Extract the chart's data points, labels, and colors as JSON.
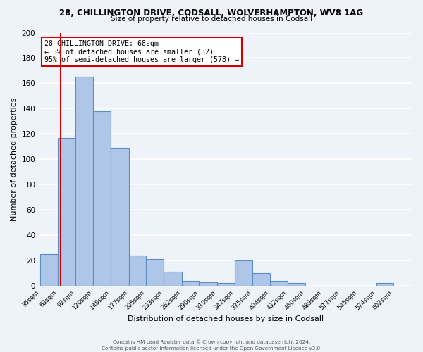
{
  "title_line1": "28, CHILLINGTON DRIVE, CODSALL, WOLVERHAMPTON, WV8 1AG",
  "title_line2": "Size of property relative to detached houses in Codsall",
  "xlabel": "Distribution of detached houses by size in Codsall",
  "ylabel": "Number of detached properties",
  "bar_edges": [
    35,
    63,
    92,
    120,
    148,
    177,
    205,
    233,
    262,
    290,
    319,
    347,
    375,
    404,
    432,
    460,
    489,
    517,
    545,
    574,
    602
  ],
  "bar_heights": [
    25,
    117,
    165,
    138,
    109,
    24,
    21,
    11,
    4,
    3,
    2,
    20,
    10,
    4,
    2,
    0,
    0,
    0,
    0,
    2,
    0
  ],
  "bar_color": "#aec6e8",
  "bar_edge_color": "#5b8ec4",
  "vline_x": 68,
  "vline_color": "#cc0000",
  "ylim": [
    0,
    200
  ],
  "yticks": [
    0,
    20,
    40,
    60,
    80,
    100,
    120,
    140,
    160,
    180,
    200
  ],
  "annotation_text": "28 CHILLINGTON DRIVE: 68sqm\n← 5% of detached houses are smaller (32)\n95% of semi-detached houses are larger (578) →",
  "annotation_box_color": "#ffffff",
  "annotation_box_edge": "#cc0000",
  "footer_line1": "Contains HM Land Registry data © Crown copyright and database right 2024.",
  "footer_line2": "Contains public sector information licensed under the Open Government Licence v3.0.",
  "background_color": "#eef2f9",
  "grid_color": "#ffffff"
}
